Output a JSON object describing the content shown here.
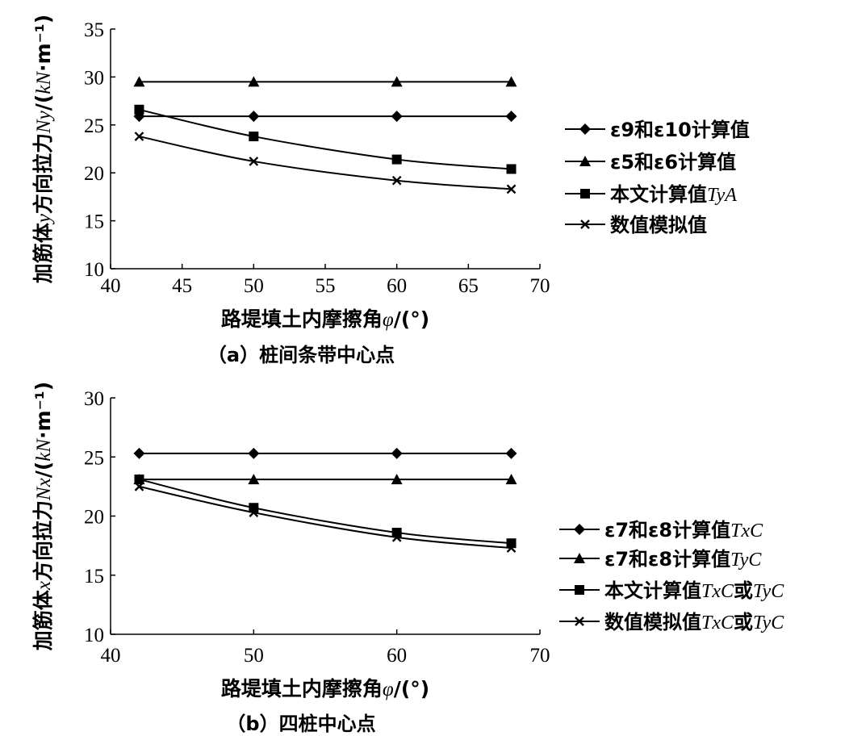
{
  "chart_data": [
    {
      "type": "line",
      "caption": "（a）桩间条带中心点",
      "xlabel": "路堤填土内摩擦角φ/(°)",
      "ylabel": "加筋体y方向拉力Ny/(kN·m⁻¹)",
      "xlim": [
        40,
        70
      ],
      "ylim": [
        10,
        35
      ],
      "xticks": [
        40,
        45,
        50,
        55,
        60,
        65,
        70
      ],
      "yticks": [
        10,
        15,
        20,
        25,
        30,
        35
      ],
      "x": [
        42,
        50,
        60,
        68
      ],
      "grid": false,
      "legend_position": "right",
      "series": [
        {
          "name": "ε9和ε10计算值",
          "marker": "diamond",
          "values": [
            25.9,
            25.9,
            25.9,
            25.9
          ]
        },
        {
          "name": "ε5和ε6计算值",
          "marker": "triangle",
          "values": [
            29.5,
            29.5,
            29.5,
            29.5
          ]
        },
        {
          "name": "本文计算值TyA",
          "marker": "square",
          "values": [
            26.6,
            23.8,
            21.4,
            20.4
          ]
        },
        {
          "name": "数值模拟值",
          "marker": "x",
          "values": [
            23.8,
            21.2,
            19.2,
            18.3
          ]
        }
      ]
    },
    {
      "type": "line",
      "caption": "（b）四桩中心点",
      "xlabel": "路堤填土内摩擦角φ/(°)",
      "ylabel": "加筋体x方向拉力Nx/(kN·m⁻¹)",
      "xlim": [
        40,
        70
      ],
      "ylim": [
        10,
        30
      ],
      "xticks": [
        40,
        50,
        60,
        70
      ],
      "yticks": [
        10,
        15,
        20,
        25,
        30
      ],
      "x": [
        42,
        50,
        60,
        68
      ],
      "grid": false,
      "legend_position": "right",
      "series": [
        {
          "name": "ε7和ε8计算值TxC",
          "marker": "diamond",
          "values": [
            25.3,
            25.3,
            25.3,
            25.3
          ]
        },
        {
          "name": "ε7和ε8计算值TyC",
          "marker": "triangle",
          "values": [
            23.1,
            23.1,
            23.1,
            23.1
          ]
        },
        {
          "name": "本文计算值TxC或TyC",
          "marker": "square",
          "values": [
            23.1,
            20.7,
            18.6,
            17.7
          ]
        },
        {
          "name": "数值模拟值TxC或TyC",
          "marker": "x",
          "values": [
            22.5,
            20.3,
            18.2,
            17.3
          ]
        }
      ]
    }
  ]
}
